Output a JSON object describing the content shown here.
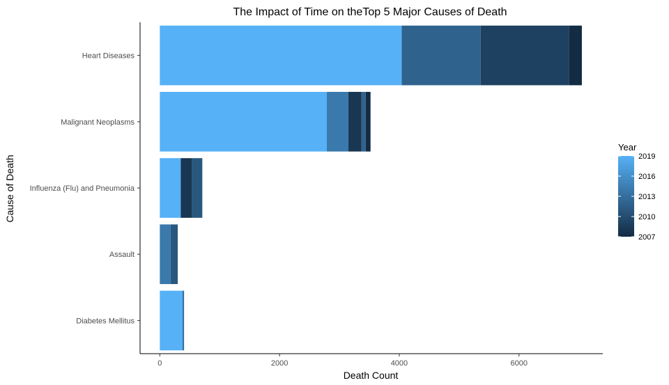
{
  "chart_data": {
    "type": "bar",
    "orientation": "horizontal",
    "stacked": true,
    "title": "The Impact of Time on theTop 5 Major Causes of Death",
    "xlabel": "Death Count",
    "ylabel": "Cause of Death",
    "xlim": [
      -330,
      7400
    ],
    "xticks": [
      0,
      2000,
      4000,
      6000
    ],
    "categories": [
      "Heart Diseases",
      "Malignant Neoplasms",
      "Influenza (Flu) and Pneumonia",
      "Assault",
      "Diabetes Mellitus"
    ],
    "legend": {
      "title": "Year",
      "position": "right",
      "ticks": [
        2019,
        2016,
        2013,
        2010,
        2007
      ],
      "min": 2007,
      "max": 2019,
      "color_low": "#132b43",
      "color_high": "#56b1f7"
    },
    "bars": [
      {
        "category": "Heart Diseases",
        "segments": [
          {
            "year": 2019,
            "value": 4040
          },
          {
            "year": 2012,
            "value": 1320
          },
          {
            "year": 2009,
            "value": 1480
          },
          {
            "year": 2007,
            "value": 210
          }
        ]
      },
      {
        "category": "Malignant Neoplasms",
        "segments": [
          {
            "year": 2019,
            "value": 2790
          },
          {
            "year": 2014,
            "value": 360
          },
          {
            "year": 2008,
            "value": 220
          },
          {
            "year": 2012,
            "value": 70
          },
          {
            "year": 2007,
            "value": 80
          }
        ]
      },
      {
        "category": "Influenza (Flu) and Pneumonia",
        "segments": [
          {
            "year": 2019,
            "value": 350
          },
          {
            "year": 2008,
            "value": 190
          },
          {
            "year": 2011,
            "value": 170
          }
        ]
      },
      {
        "category": "Assault",
        "segments": [
          {
            "year": 2014,
            "value": 180
          },
          {
            "year": 2011,
            "value": 120
          }
        ]
      },
      {
        "category": "Diabetes Mellitus",
        "segments": [
          {
            "year": 2019,
            "value": 380
          },
          {
            "year": 2013,
            "value": 25
          }
        ]
      }
    ]
  }
}
